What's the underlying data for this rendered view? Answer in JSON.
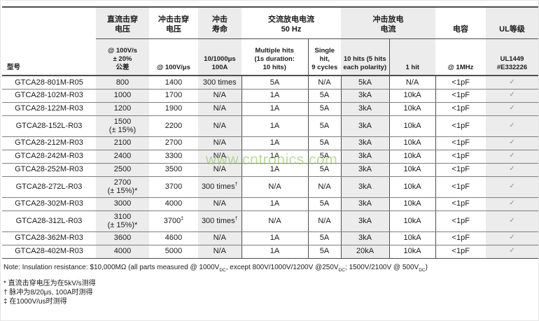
{
  "table": {
    "model_label": "型号",
    "groups": [
      "直流击穿\n电压",
      "冲击击穿\n电压",
      "冲击\n寿命",
      "交流放电电流\n50 Hz",
      "冲击放电\n电流",
      "电容",
      "UL等级"
    ],
    "subheaders": [
      "@ 100V/s\n± 20%\n公差",
      "@ 100V/μs",
      "10/1000μs\n100A",
      "Multiple hits\n(1s duration:\n10 hits)",
      "Single hit,\n9 cycles",
      "10 hits (5 hits\neach polarity)",
      "1 hit",
      "@ 1MHz",
      "UL1449\n#E332226"
    ],
    "rows": [
      {
        "model": "GTCA28-801M-R05",
        "dc": "800",
        "imp": "1400",
        "life": "300 times",
        "multi": "5A",
        "single": "N/A",
        "hits10": "5kA",
        "hit1": "N/A",
        "cap": "<1pF",
        "ul": "✓"
      },
      {
        "model": "GTCA28-102M-R03",
        "dc": "1000",
        "imp": "1700",
        "life": "N/A",
        "multi": "1A",
        "single": "5A",
        "hits10": "3kA",
        "hit1": "10kA",
        "cap": "<1pF",
        "ul": "✓"
      },
      {
        "model": "GTCA28-122M-R03",
        "dc": "1200",
        "imp": "1900",
        "life": "N/A",
        "multi": "1A",
        "single": "5A",
        "hits10": "3kA",
        "hit1": "10kA",
        "cap": "<1pF",
        "ul": "✓"
      },
      {
        "model": "GTCA28-152L-R03",
        "dc": "1500\n(± 15%)",
        "imp": "2200",
        "life": "N/A",
        "multi": "1A",
        "single": "5A",
        "hits10": "3kA",
        "hit1": "10kA",
        "cap": "<1pF",
        "ul": "✓"
      },
      {
        "model": "GTCA28-212M-R03",
        "dc": "2100",
        "imp": "2700",
        "life": "N/A",
        "multi": "1A",
        "single": "5A",
        "hits10": "3kA",
        "hit1": "10kA",
        "cap": "<1pF",
        "ul": "✓"
      },
      {
        "model": "GTCA28-242M-R03",
        "dc": "2400",
        "imp": "3300",
        "life": "N/A",
        "multi": "1A",
        "single": "5A",
        "hits10": "3kA",
        "hit1": "10kA",
        "cap": "<1pF",
        "ul": "✓"
      },
      {
        "model": "GTCA28-252M-R03",
        "dc": "2500",
        "imp": "3500",
        "life": "N/A",
        "multi": "1A",
        "single": "5A",
        "hits10": "3kA",
        "hit1": "10kA",
        "cap": "<1pF",
        "ul": "✓"
      },
      {
        "model": "GTCA28-272L-R03",
        "dc": "2700\n(± 15%)*",
        "imp": "3700",
        "life": "300 times†",
        "multi": "N/A",
        "single": "N/A",
        "hits10": "3kA",
        "hit1": "10kA",
        "cap": "<1pF",
        "ul": "✓"
      },
      {
        "model": "GTCA28-302M-R03",
        "dc": "3000",
        "imp": "4000",
        "life": "N/A",
        "multi": "1A",
        "single": "5A",
        "hits10": "3kA",
        "hit1": "10kA",
        "cap": "<1pF",
        "ul": "✓"
      },
      {
        "model": "GTCA28-312L-R03",
        "dc": "3100\n(± 15%)*",
        "imp": "3700‡",
        "life": "300 times†",
        "multi": "N/A",
        "single": "N/A",
        "hits10": "3kA",
        "hit1": "10kA",
        "cap": "<1pF",
        "ul": "✓"
      },
      {
        "model": "GTCA28-362M-R03",
        "dc": "3600",
        "imp": "4600",
        "life": "N/A",
        "multi": "1A",
        "single": "5A",
        "hits10": "3kA",
        "hit1": "10kA",
        "cap": "<1pF",
        "ul": "✓"
      },
      {
        "model": "GTCA28-402M-R03",
        "dc": "4000",
        "imp": "5000",
        "life": "N/A",
        "multi": "1A",
        "single": "5A",
        "hits10": "20kA",
        "hit1": "10kA",
        "cap": "<1pF",
        "ul": "✓"
      }
    ]
  },
  "note": {
    "p0": "Note: Insulation resistance: $10,000MΩ (all parts measured @ 1000V",
    "s0": "DC",
    "p1": ", except 800V/1000V/1200V @250V",
    "s1": "DC",
    "p2": "; 1500V/2100V @ 500V",
    "s2": "DC",
    "p3": ")"
  },
  "footnotes": [
    "* 直流击穿电压为在5kV/s测得",
    "† 脉冲为8/20μs, 100A时测得",
    "‡ 在1000V/us时测得"
  ],
  "watermark": "www.cntronics.com",
  "colors": {
    "column_shade": "#ececec",
    "rule_dark": "#4d4d4d",
    "row_line": "#7e7e7e",
    "checkmark": "#8f8f8f",
    "watermark_green": "#90c75c"
  }
}
